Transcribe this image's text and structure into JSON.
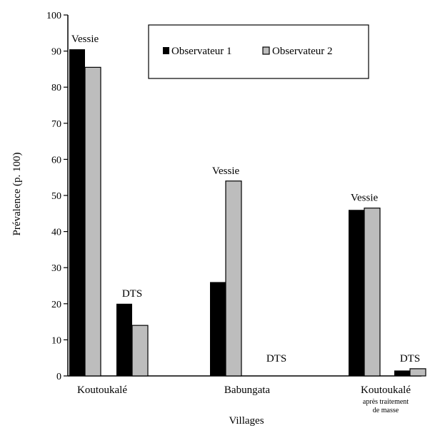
{
  "chart_data": {
    "type": "bar",
    "ylabel": "Prévalence (p. 100)",
    "xlabel": "Villages",
    "ylim": [
      0,
      100
    ],
    "yticks": [
      0,
      10,
      20,
      30,
      40,
      50,
      60,
      70,
      80,
      90,
      100
    ],
    "villages": [
      {
        "name": "Koutoukalé",
        "subtitle": []
      },
      {
        "name": "Babungata",
        "subtitle": []
      },
      {
        "name": "Koutoukalé",
        "subtitle": [
          "après traitement",
          "de masse"
        ]
      }
    ],
    "groups": [
      {
        "village": 0,
        "label": "Vessie",
        "values": [
          90.5,
          85.5
        ]
      },
      {
        "village": 0,
        "label": "DTS",
        "values": [
          20,
          14
        ]
      },
      {
        "village": 1,
        "label": "Vessie",
        "values": [
          26,
          54
        ]
      },
      {
        "village": 1,
        "label": "DTS",
        "values": [
          0,
          0
        ]
      },
      {
        "village": 2,
        "label": "Vessie",
        "values": [
          46,
          46.5
        ]
      },
      {
        "village": 2,
        "label": "DTS",
        "values": [
          1.5,
          2
        ]
      }
    ],
    "series": [
      {
        "name": "Observateur 1",
        "color": "#000000"
      },
      {
        "name": "Observateur 2",
        "color": "#bdbdbd"
      }
    ],
    "grid": false,
    "legend_position": "top-right"
  }
}
